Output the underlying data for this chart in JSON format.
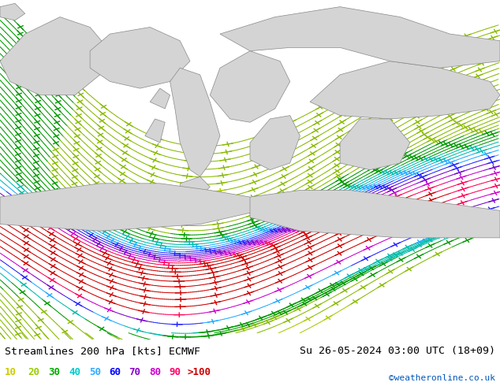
{
  "title_left": "Streamlines 200 hPa [kts] ECMWF",
  "title_right": "Su 26-05-2024 03:00 UTC (18+09)",
  "credit": "©weatheronline.co.uk",
  "map_bg": "#c8f5a0",
  "land_color": "#d8d8d8",
  "title_fontsize": 10,
  "credit_color": "#0055bb",
  "legend_values": [
    "10",
    "20",
    "30",
    "40",
    "50",
    "60",
    "70",
    "80",
    "90",
    ">100"
  ],
  "legend_colors": [
    "#cccc00",
    "#99cc00",
    "#00aa00",
    "#00cccc",
    "#33aaff",
    "#0000ff",
    "#8800cc",
    "#cc00cc",
    "#ff0066",
    "#cc0000"
  ]
}
